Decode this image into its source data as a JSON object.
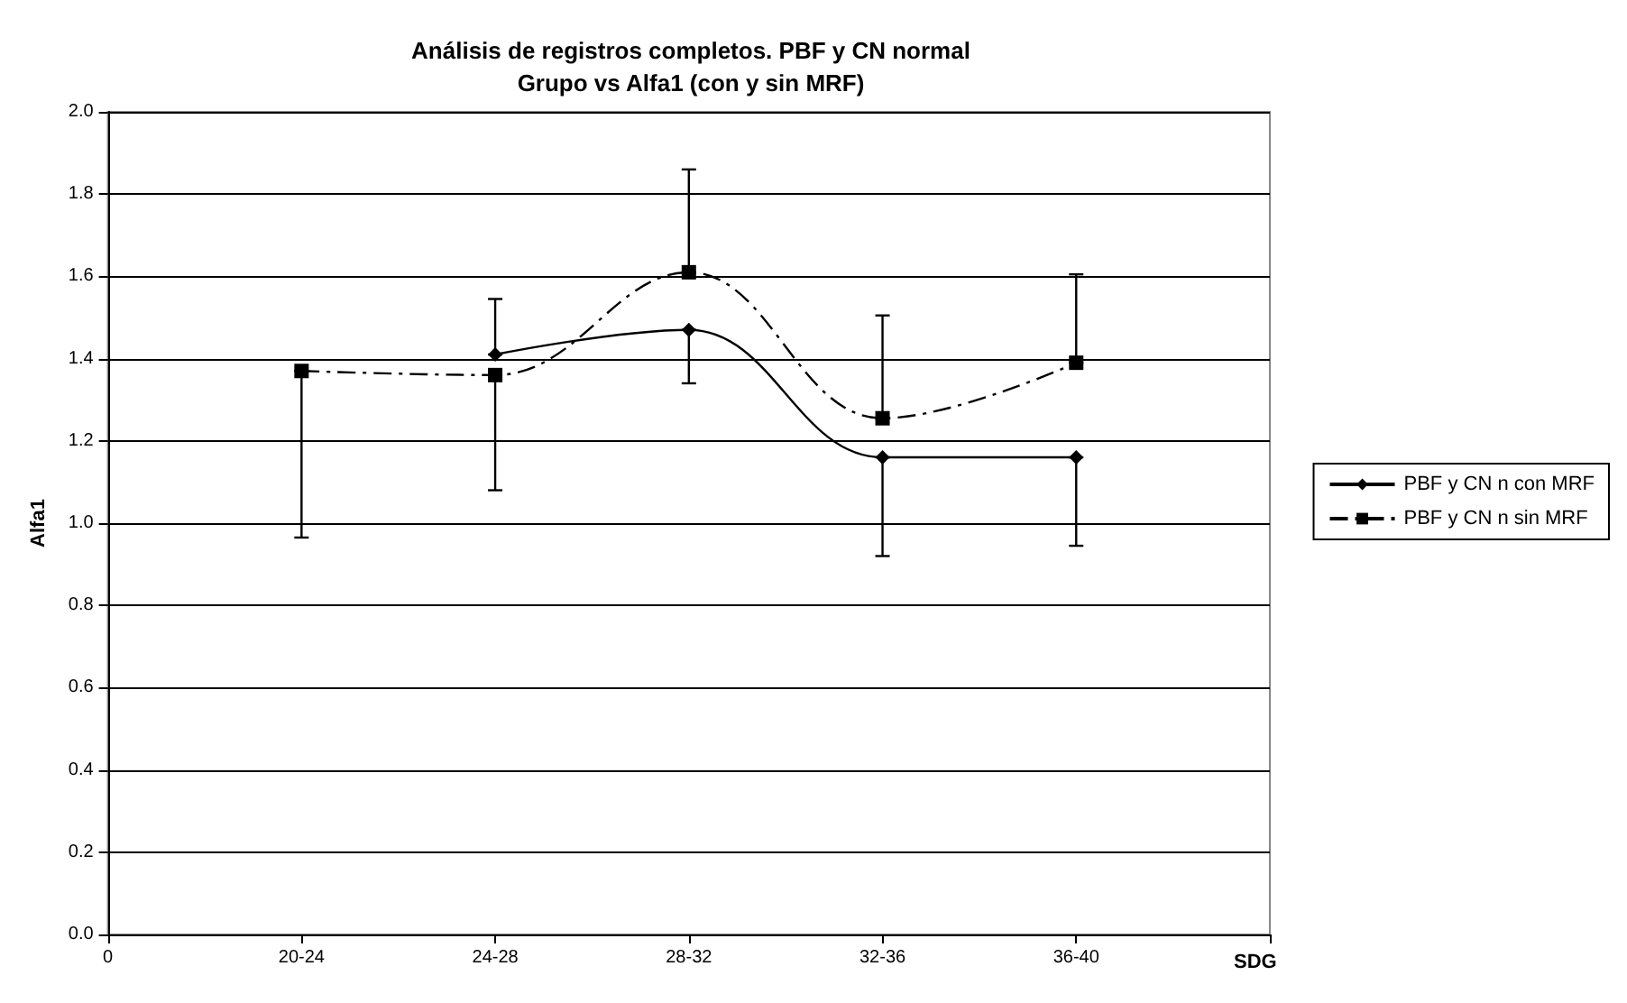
{
  "chart_data": {
    "type": "line",
    "title": "Análisis de registros completos. PBF y CN normal\nGrupo vs Alfa1 (con y sin MRF)",
    "xlabel": "SDG",
    "ylabel": "Alfa1",
    "categories": [
      "0",
      "20-24",
      "24-28",
      "28-32",
      "32-36",
      "36-40",
      null
    ],
    "series": [
      {
        "name": "PBF y CN n con MRF",
        "color": "#000000",
        "marker": "diamond",
        "line_style": "solid",
        "values": [
          null,
          null,
          1.41,
          1.47,
          1.16,
          1.16,
          null
        ],
        "errors": [
          null,
          null,
          [
            1.41,
            1.545
          ],
          [
            1.34,
            1.47
          ],
          [
            0.92,
            1.16
          ],
          [
            0.945,
            1.16
          ],
          null
        ]
      },
      {
        "name": "PBF y CN n sin MRF",
        "color": "#000000",
        "marker": "square",
        "line_style": "dashed",
        "values": [
          null,
          1.37,
          1.36,
          1.61,
          1.255,
          1.39,
          null
        ],
        "errors": [
          null,
          [
            0.965,
            1.37
          ],
          [
            1.08,
            1.36
          ],
          [
            1.61,
            1.86
          ],
          [
            1.255,
            1.505
          ],
          [
            1.39,
            1.605
          ],
          null
        ]
      }
    ],
    "ylim": [
      0,
      2
    ],
    "yticks": [
      {
        "value": 0,
        "label": "0.0"
      },
      0.2,
      0.4,
      0.6,
      0.8,
      {
        "value": 1,
        "label": "1.0"
      },
      1.2,
      1.4,
      1.6,
      1.8,
      {
        "value": 2,
        "label": "2.0"
      }
    ],
    "grid": "y",
    "legend": "right"
  }
}
